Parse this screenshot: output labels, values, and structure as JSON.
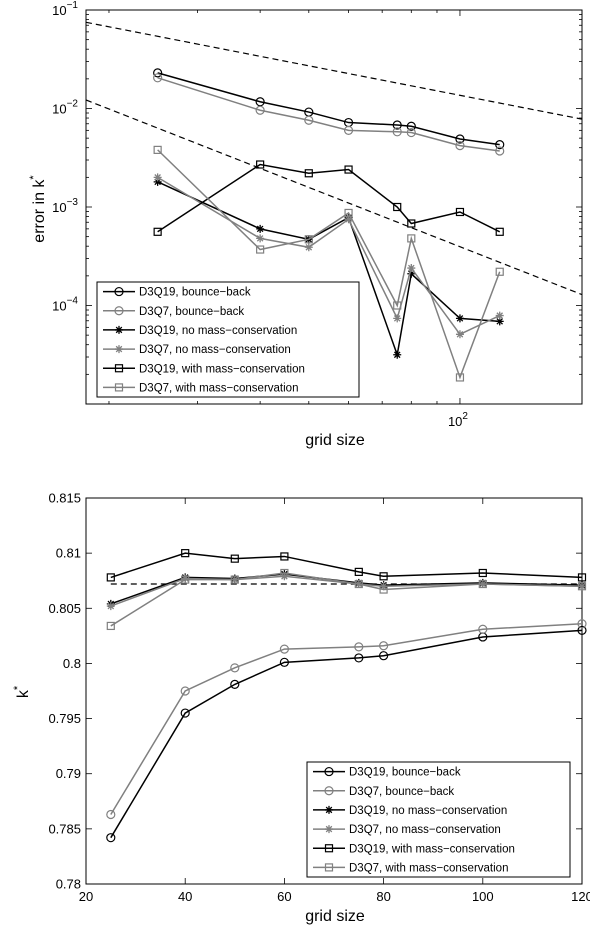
{
  "chart_data": [
    {
      "type": "line",
      "xscale": "log",
      "yscale": "log",
      "xlabel": "grid size",
      "ylabel": "error in k",
      "ylabel_sup": "*",
      "xlim": [
        18,
        175
      ],
      "ylim": [
        1e-05,
        0.1
      ],
      "x_tick_labels": [
        {
          "value": 100,
          "base": "10",
          "exp": "2"
        }
      ],
      "y_tick_labels": [
        {
          "value": 0.1,
          "base": "10",
          "exp": "−1"
        },
        {
          "value": 0.01,
          "base": "10",
          "exp": "−2"
        },
        {
          "value": 0.001,
          "base": "10",
          "exp": "−3"
        },
        {
          "value": 0.0001,
          "base": "10",
          "exp": "−4"
        }
      ],
      "grid": false,
      "legend_position": "bottom-left",
      "x": [
        25,
        40,
        50,
        60,
        75,
        80,
        100,
        120
      ],
      "series": [
        {
          "name": "D3Q19, bounce−back",
          "color": "#000000",
          "marker": "circle",
          "values": [
            0.023,
            0.0117,
            0.0092,
            0.0072,
            0.0068,
            0.0066,
            0.0049,
            0.0043
          ]
        },
        {
          "name": "D3Q7, bounce−back",
          "color": "#808080",
          "marker": "circle",
          "values": [
            0.0205,
            0.0096,
            0.0076,
            0.006,
            0.0058,
            0.0057,
            0.0042,
            0.0037
          ]
        },
        {
          "name": "D3Q19, no mass−conservation",
          "color": "#000000",
          "marker": "star",
          "values": [
            0.0018,
            0.0006,
            0.00047,
            0.00078,
            3.16e-05,
            0.00021,
            7.4e-05,
            6.9e-05
          ]
        },
        {
          "name": "D3Q7, no mass−conservation",
          "color": "#808080",
          "marker": "star",
          "values": [
            0.002,
            0.00048,
            0.00039,
            0.00075,
            7.4e-05,
            0.00024,
            5.1e-05,
            7.9e-05
          ]
        },
        {
          "name": "D3Q19, with mass−conservation",
          "color": "#000000",
          "marker": "square",
          "values": [
            0.00056,
            0.0027,
            0.0022,
            0.0024,
            0.001,
            0.00068,
            0.00089,
            0.00056
          ]
        },
        {
          "name": "D3Q7, with mass−conservation",
          "color": "#808080",
          "marker": "square",
          "values": [
            0.0038,
            0.00037,
            0.00047,
            0.00087,
            0.0001,
            0.00048,
            1.86e-05,
            0.00022
          ]
        }
      ],
      "reference_lines": [
        {
          "style": "dashed",
          "color": "#000000",
          "points": [
            [
              18,
              0.075
            ],
            [
              175,
              0.0078
            ]
          ]
        },
        {
          "style": "dashed",
          "color": "#000000",
          "points": [
            [
              18,
              0.0122
            ],
            [
              175,
              0.000129
            ]
          ]
        }
      ]
    },
    {
      "type": "line",
      "xlabel": "grid size",
      "ylabel": "k",
      "ylabel_sup": "*",
      "xlim": [
        20,
        120
      ],
      "ylim": [
        0.78,
        0.815
      ],
      "x_ticks": [
        20,
        40,
        60,
        80,
        100,
        120
      ],
      "x_tick_labels": [
        "20",
        "40",
        "60",
        "80",
        "100",
        "120"
      ],
      "y_ticks": [
        0.78,
        0.785,
        0.79,
        0.795,
        0.8,
        0.805,
        0.81,
        0.815
      ],
      "y_tick_labels": [
        "0.78",
        "0.785",
        "0.79",
        "0.795",
        "0.8",
        "0.805",
        "0.81",
        "0.815"
      ],
      "grid": false,
      "legend_position": "bottom-right",
      "x": [
        25,
        40,
        50,
        60,
        75,
        80,
        100,
        120
      ],
      "series": [
        {
          "name": "D3Q19, bounce−back",
          "color": "#000000",
          "marker": "circle",
          "values": [
            0.7842,
            0.7955,
            0.7981,
            0.8001,
            0.8005,
            0.8007,
            0.8024,
            0.803
          ]
        },
        {
          "name": "D3Q7, bounce−back",
          "color": "#808080",
          "marker": "circle",
          "values": [
            0.7863,
            0.7975,
            0.7996,
            0.8013,
            0.8015,
            0.8016,
            0.8031,
            0.8036
          ]
        },
        {
          "name": "D3Q19, no mass−conservation",
          "color": "#000000",
          "marker": "star",
          "values": [
            0.8054,
            0.8078,
            0.8077,
            0.8081,
            0.8073,
            0.8071,
            0.8073,
            0.8071
          ]
        },
        {
          "name": "D3Q7, no mass−conservation",
          "color": "#808080",
          "marker": "star",
          "values": [
            0.8052,
            0.8077,
            0.8076,
            0.8079,
            0.8072,
            0.807,
            0.8072,
            0.807
          ]
        },
        {
          "name": "D3Q19, with mass−conservation",
          "color": "#000000",
          "marker": "square",
          "values": [
            0.8078,
            0.81,
            0.8095,
            0.8097,
            0.8083,
            0.8079,
            0.8082,
            0.8078
          ]
        },
        {
          "name": "D3Q7, with mass−conservation",
          "color": "#808080",
          "marker": "square",
          "values": [
            0.8034,
            0.8076,
            0.8076,
            0.8082,
            0.8072,
            0.8067,
            0.8072,
            0.807
          ]
        }
      ],
      "reference_lines": [
        {
          "style": "dashed",
          "color": "#000000",
          "points": [
            [
              25,
              0.8072
            ],
            [
              120,
              0.8072
            ]
          ]
        }
      ]
    }
  ]
}
